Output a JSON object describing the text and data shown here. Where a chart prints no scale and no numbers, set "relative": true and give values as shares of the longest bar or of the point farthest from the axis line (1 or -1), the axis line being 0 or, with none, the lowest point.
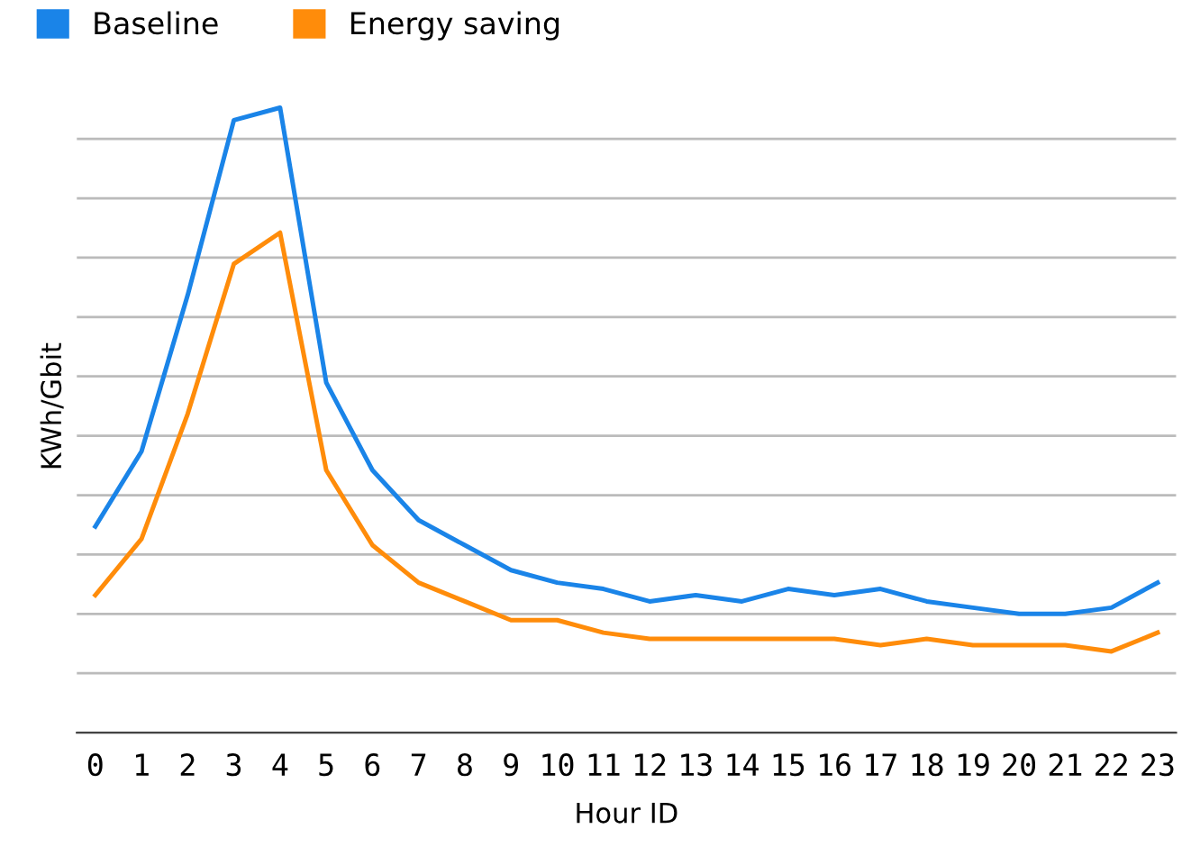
{
  "chart_data": {
    "type": "line",
    "xlabel": "Hour ID",
    "ylabel": "KWh/Gbit",
    "relative": true,
    "grid": "y",
    "legend": "top left",
    "marker": "none",
    "line_style": "solid",
    "categories": [
      "0",
      "1",
      "2",
      "3",
      "4",
      "5",
      "6",
      "7",
      "8",
      "9",
      "10",
      "11",
      "12",
      "13",
      "14",
      "15",
      "16",
      "17",
      "18",
      "19",
      "20",
      "21",
      "22",
      "23"
    ],
    "series": [
      {
        "name": "Baseline",
        "color": "#1a84e8",
        "values": [
          0.33,
          0.45,
          0.7,
          0.98,
          1,
          0.56,
          0.42,
          0.34,
          0.3,
          0.26,
          0.24,
          0.23,
          0.21,
          0.22,
          0.21,
          0.23,
          0.22,
          0.23,
          0.21,
          0.2,
          0.19,
          0.19,
          0.2,
          0.24
        ]
      },
      {
        "name": "Energy saving",
        "color": "#ff8c0a",
        "values": [
          0.22,
          0.31,
          0.51,
          0.75,
          0.8,
          0.42,
          0.3,
          0.24,
          0.21,
          0.18,
          0.18,
          0.16,
          0.15,
          0.15,
          0.15,
          0.15,
          0.15,
          0.14,
          0.15,
          0.14,
          0.14,
          0.14,
          0.13,
          0.16
        ]
      }
    ]
  }
}
